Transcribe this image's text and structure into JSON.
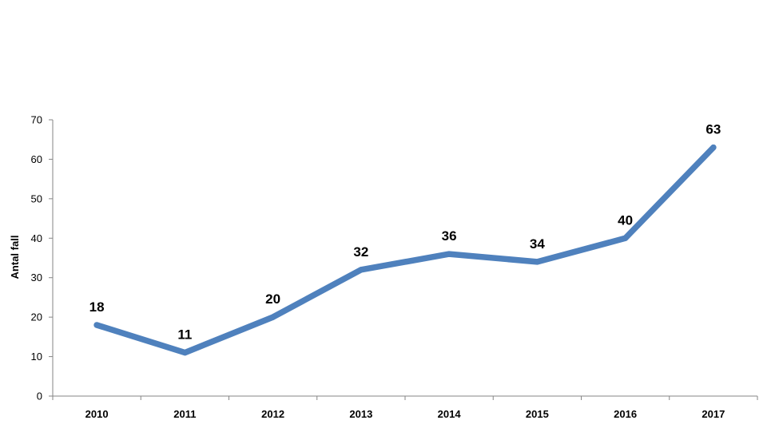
{
  "chart_data": {
    "type": "line",
    "title": "",
    "xlabel": "",
    "ylabel": "Antal fall",
    "categories": [
      "2010",
      "2011",
      "2012",
      "2013",
      "2014",
      "2015",
      "2016",
      "2017"
    ],
    "series": [
      {
        "values": [
          18,
          11,
          20,
          32,
          36,
          34,
          40,
          63
        ],
        "color": "#4F81BD"
      }
    ],
    "data_labels": [
      "18",
      "11",
      "20",
      "32",
      "36",
      "34",
      "40",
      "63"
    ],
    "y_ticks": [
      "0",
      "10",
      "20",
      "30",
      "40",
      "50",
      "60",
      "70"
    ],
    "ylim": [
      0,
      70
    ],
    "grid": false,
    "legend": "none"
  }
}
